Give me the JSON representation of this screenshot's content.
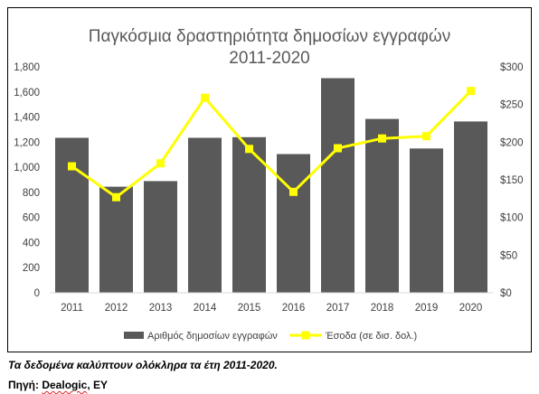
{
  "chart_data": {
    "type": "bar+line",
    "title": [
      "Παγκόσμια δραστηριότητα δημοσίων εγγραφών",
      "2011-2020"
    ],
    "categories": [
      "2011",
      "2012",
      "2013",
      "2014",
      "2015",
      "2016",
      "2017",
      "2018",
      "2019",
      "2020"
    ],
    "series": [
      {
        "name": "Αριθμός δημοσίων εγγραφών",
        "type": "bar",
        "axis": "left",
        "color": "#595959",
        "values": [
          1235,
          845,
          890,
          1235,
          1240,
          1105,
          1710,
          1385,
          1150,
          1365
        ]
      },
      {
        "name": "Έσοδα (σε δισ. δολ.)",
        "type": "line",
        "axis": "right",
        "color": "#ffff00",
        "values": [
          168,
          127,
          172,
          259,
          191,
          134,
          192,
          205,
          208,
          268
        ]
      }
    ],
    "y_left": {
      "min": 0,
      "max": 1800,
      "ticks": [
        "0",
        "200",
        "400",
        "600",
        "800",
        "1,000",
        "1,200",
        "1,400",
        "1,600",
        "1,800"
      ]
    },
    "y_right": {
      "min": 0,
      "max": 300,
      "ticks": [
        "$0",
        "$50",
        "$100",
        "$150",
        "$200",
        "$250",
        "$300"
      ]
    },
    "grid": false,
    "legend_position": "bottom"
  },
  "footnotes": {
    "coverage": "Τα δεδομένα καλύπτουν ολόκληρα τα έτη 2011-2020.",
    "source_prefix": "Πηγή: ",
    "source_dealogic": "Dealogic",
    "source_suffix": ", EY"
  }
}
